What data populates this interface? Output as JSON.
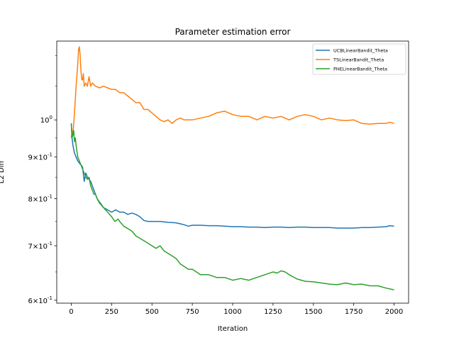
{
  "chart_data": {
    "type": "line",
    "title": "Parameter estimation error",
    "xlabel": "Iteration",
    "ylabel": "L2 Diff",
    "yscale": "log",
    "xlim": [
      -90,
      2090
    ],
    "ylim": [
      0.595,
      1.25
    ],
    "x_ticks": [
      0,
      250,
      500,
      750,
      1000,
      1250,
      1500,
      1750,
      2000
    ],
    "x_tick_labels": [
      "0",
      "250",
      "500",
      "750",
      "1000",
      "1250",
      "1500",
      "1750",
      "2000"
    ],
    "y_ticks": [
      {
        "value": 1.0,
        "label": "10^0"
      },
      {
        "value": 0.9,
        "label": "9×10^-1"
      },
      {
        "value": 0.8,
        "label": "8×10^-1"
      },
      {
        "value": 0.7,
        "label": "7×10^-1"
      },
      {
        "value": 0.6,
        "label": "6×10^-1"
      }
    ],
    "grid": false,
    "legend_position": "top-right",
    "series": [
      {
        "name": "UCBLinearBandit_Theta",
        "color": "#1f77b4",
        "points": [
          [
            0,
            0.99
          ],
          [
            5,
            0.95
          ],
          [
            10,
            0.93
          ],
          [
            20,
            0.91
          ],
          [
            30,
            0.9
          ],
          [
            40,
            0.89
          ],
          [
            50,
            0.885
          ],
          [
            60,
            0.88
          ],
          [
            70,
            0.875
          ],
          [
            80,
            0.84
          ],
          [
            90,
            0.86
          ],
          [
            100,
            0.85
          ],
          [
            120,
            0.84
          ],
          [
            140,
            0.82
          ],
          [
            160,
            0.8
          ],
          [
            180,
            0.79
          ],
          [
            200,
            0.78
          ],
          [
            225,
            0.775
          ],
          [
            250,
            0.77
          ],
          [
            275,
            0.775
          ],
          [
            300,
            0.77
          ],
          [
            325,
            0.77
          ],
          [
            350,
            0.765
          ],
          [
            375,
            0.768
          ],
          [
            400,
            0.765
          ],
          [
            425,
            0.76
          ],
          [
            450,
            0.752
          ],
          [
            475,
            0.75
          ],
          [
            500,
            0.75
          ],
          [
            550,
            0.75
          ],
          [
            600,
            0.748
          ],
          [
            650,
            0.747
          ],
          [
            700,
            0.743
          ],
          [
            725,
            0.74
          ],
          [
            750,
            0.742
          ],
          [
            800,
            0.742
          ],
          [
            850,
            0.741
          ],
          [
            900,
            0.741
          ],
          [
            950,
            0.74
          ],
          [
            1000,
            0.739
          ],
          [
            1050,
            0.739
          ],
          [
            1100,
            0.738
          ],
          [
            1150,
            0.738
          ],
          [
            1200,
            0.737
          ],
          [
            1250,
            0.738
          ],
          [
            1300,
            0.738
          ],
          [
            1350,
            0.737
          ],
          [
            1400,
            0.738
          ],
          [
            1450,
            0.738
          ],
          [
            1500,
            0.737
          ],
          [
            1550,
            0.737
          ],
          [
            1600,
            0.737
          ],
          [
            1650,
            0.736
          ],
          [
            1700,
            0.736
          ],
          [
            1750,
            0.736
          ],
          [
            1800,
            0.737
          ],
          [
            1850,
            0.737
          ],
          [
            1900,
            0.738
          ],
          [
            1950,
            0.739
          ],
          [
            1975,
            0.741
          ],
          [
            2000,
            0.74
          ]
        ]
      },
      {
        "name": "TSLinearBandit_Theta",
        "color": "#ff7f0e",
        "points": [
          [
            0,
            0.95
          ],
          [
            5,
            0.97
          ],
          [
            10,
            0.96
          ],
          [
            20,
            1.02
          ],
          [
            30,
            1.1
          ],
          [
            40,
            1.17
          ],
          [
            45,
            1.22
          ],
          [
            50,
            1.23
          ],
          [
            55,
            1.2
          ],
          [
            60,
            1.15
          ],
          [
            65,
            1.12
          ],
          [
            70,
            1.12
          ],
          [
            75,
            1.14
          ],
          [
            80,
            1.1
          ],
          [
            90,
            1.11
          ],
          [
            100,
            1.1
          ],
          [
            110,
            1.13
          ],
          [
            120,
            1.1
          ],
          [
            130,
            1.11
          ],
          [
            150,
            1.1
          ],
          [
            175,
            1.095
          ],
          [
            200,
            1.1
          ],
          [
            225,
            1.095
          ],
          [
            250,
            1.09
          ],
          [
            275,
            1.09
          ],
          [
            300,
            1.08
          ],
          [
            325,
            1.08
          ],
          [
            350,
            1.07
          ],
          [
            375,
            1.06
          ],
          [
            400,
            1.05
          ],
          [
            425,
            1.05
          ],
          [
            450,
            1.03
          ],
          [
            475,
            1.03
          ],
          [
            500,
            1.02
          ],
          [
            525,
            1.01
          ],
          [
            550,
            1.0
          ],
          [
            575,
            0.995
          ],
          [
            600,
            1.0
          ],
          [
            625,
            0.99
          ],
          [
            650,
            1.0
          ],
          [
            675,
            1.005
          ],
          [
            700,
            1.0
          ],
          [
            750,
            1.0
          ],
          [
            800,
            1.005
          ],
          [
            850,
            1.01
          ],
          [
            900,
            1.02
          ],
          [
            950,
            1.025
          ],
          [
            1000,
            1.015
          ],
          [
            1050,
            1.01
          ],
          [
            1100,
            1.01
          ],
          [
            1150,
            1.0
          ],
          [
            1200,
            1.01
          ],
          [
            1250,
            1.005
          ],
          [
            1300,
            1.01
          ],
          [
            1350,
            1.0
          ],
          [
            1400,
            1.01
          ],
          [
            1450,
            1.015
          ],
          [
            1500,
            1.01
          ],
          [
            1550,
            1.0
          ],
          [
            1600,
            1.005
          ],
          [
            1650,
            1.0
          ],
          [
            1700,
            0.998
          ],
          [
            1750,
            1.0
          ],
          [
            1800,
            0.99
          ],
          [
            1850,
            0.988
          ],
          [
            1900,
            0.99
          ],
          [
            1950,
            0.99
          ],
          [
            1975,
            0.993
          ],
          [
            2000,
            0.99
          ]
        ]
      },
      {
        "name": "PHELinearBandit_Theta",
        "color": "#2ca02c",
        "points": [
          [
            0,
            0.99
          ],
          [
            5,
            0.95
          ],
          [
            10,
            0.96
          ],
          [
            15,
            0.97
          ],
          [
            20,
            0.94
          ],
          [
            25,
            0.95
          ],
          [
            30,
            0.93
          ],
          [
            40,
            0.9
          ],
          [
            50,
            0.89
          ],
          [
            60,
            0.88
          ],
          [
            70,
            0.87
          ],
          [
            80,
            0.86
          ],
          [
            90,
            0.85
          ],
          [
            100,
            0.845
          ],
          [
            110,
            0.85
          ],
          [
            120,
            0.83
          ],
          [
            130,
            0.82
          ],
          [
            140,
            0.81
          ],
          [
            150,
            0.81
          ],
          [
            160,
            0.8
          ],
          [
            175,
            0.79
          ],
          [
            200,
            0.78
          ],
          [
            225,
            0.77
          ],
          [
            250,
            0.76
          ],
          [
            270,
            0.75
          ],
          [
            290,
            0.755
          ],
          [
            300,
            0.75
          ],
          [
            325,
            0.74
          ],
          [
            350,
            0.735
          ],
          [
            375,
            0.73
          ],
          [
            400,
            0.72
          ],
          [
            425,
            0.715
          ],
          [
            450,
            0.71
          ],
          [
            475,
            0.705
          ],
          [
            500,
            0.7
          ],
          [
            525,
            0.695
          ],
          [
            550,
            0.7
          ],
          [
            575,
            0.69
          ],
          [
            600,
            0.685
          ],
          [
            625,
            0.68
          ],
          [
            650,
            0.675
          ],
          [
            675,
            0.665
          ],
          [
            700,
            0.66
          ],
          [
            725,
            0.655
          ],
          [
            750,
            0.655
          ],
          [
            775,
            0.65
          ],
          [
            800,
            0.645
          ],
          [
            850,
            0.645
          ],
          [
            900,
            0.64
          ],
          [
            950,
            0.64
          ],
          [
            1000,
            0.635
          ],
          [
            1050,
            0.638
          ],
          [
            1100,
            0.635
          ],
          [
            1150,
            0.64
          ],
          [
            1200,
            0.645
          ],
          [
            1250,
            0.65
          ],
          [
            1275,
            0.648
          ],
          [
            1300,
            0.652
          ],
          [
            1325,
            0.65
          ],
          [
            1350,
            0.645
          ],
          [
            1400,
            0.637
          ],
          [
            1450,
            0.633
          ],
          [
            1500,
            0.632
          ],
          [
            1550,
            0.63
          ],
          [
            1600,
            0.628
          ],
          [
            1650,
            0.627
          ],
          [
            1700,
            0.63
          ],
          [
            1750,
            0.627
          ],
          [
            1800,
            0.628
          ],
          [
            1850,
            0.625
          ],
          [
            1900,
            0.625
          ],
          [
            1950,
            0.621
          ],
          [
            2000,
            0.618
          ]
        ]
      }
    ]
  }
}
